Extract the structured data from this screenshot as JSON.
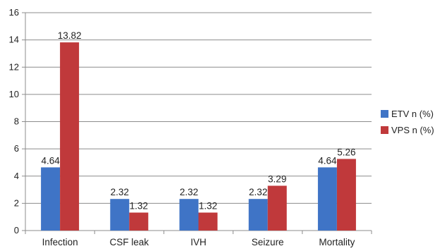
{
  "chart_data": {
    "type": "bar",
    "categories": [
      "Infection",
      "CSF leak",
      "IVH",
      "Seizure",
      "Mortality"
    ],
    "series": [
      {
        "name": "ETV n (%)",
        "values": [
          4.64,
          2.32,
          2.32,
          2.32,
          4.64
        ],
        "color": "#3f74c6"
      },
      {
        "name": "VPS n (%)",
        "values": [
          13.82,
          1.32,
          1.32,
          3.29,
          5.26
        ],
        "color": "#c0393b"
      }
    ],
    "data_labels": [
      [
        "4.64",
        "2.32",
        "2.32",
        "2.32",
        "4.64"
      ],
      [
        "13.82",
        "1.32",
        "1.32",
        "3.29",
        "5.26"
      ]
    ],
    "ylim": [
      0,
      16
    ],
    "yticks": [
      "0",
      "2",
      "4",
      "6",
      "8",
      "10",
      "12",
      "14",
      "16"
    ],
    "grid": true,
    "legend_position": "right",
    "title": "",
    "xlabel": "",
    "ylabel": ""
  }
}
